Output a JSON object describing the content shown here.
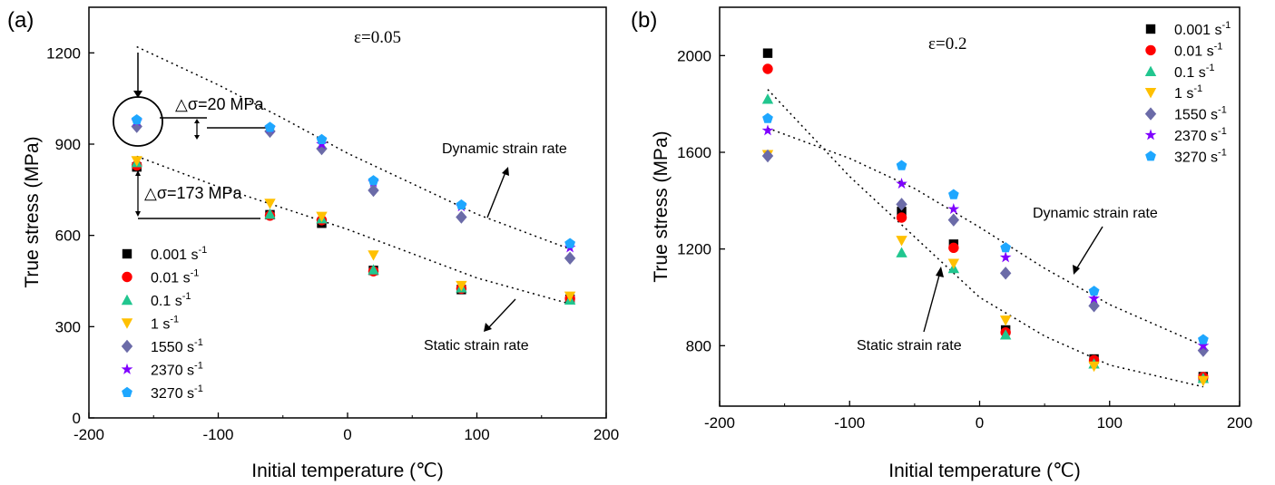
{
  "chart_data": [
    {
      "panel_label": "(a)",
      "type": "scatter",
      "strain_label": "ε=0.05",
      "xlabel": "Initial temperature (℃)",
      "ylabel": "True stress (MPa)",
      "xlim": [
        -200,
        200
      ],
      "ylim": [
        0,
        1350
      ],
      "xticks": [
        "-200",
        "-100",
        "0",
        "100",
        "200"
      ],
      "yticks": [
        "0",
        "300",
        "600",
        "900",
        "1200"
      ],
      "legend_position": "bottom-left",
      "series": [
        {
          "name": "0.001 s",
          "exp": "-1",
          "marker": "square",
          "color": "#000000",
          "x": [
            -163,
            -60,
            -20,
            20,
            88,
            172
          ],
          "y": [
            825,
            668,
            640,
            485,
            422,
            390
          ]
        },
        {
          "name": "0.01 s",
          "exp": "-1",
          "marker": "circle",
          "color": "#ff0000",
          "x": [
            -163,
            -60,
            -20,
            20,
            88,
            172
          ],
          "y": [
            830,
            665,
            650,
            482,
            425,
            392
          ]
        },
        {
          "name": "0.1 s",
          "exp": "-1",
          "marker": "triangle-up",
          "color": "#21c68f",
          "x": [
            -163,
            -60,
            -20,
            20,
            88,
            172
          ],
          "y": [
            840,
            670,
            655,
            487,
            428,
            388
          ]
        },
        {
          "name": "1 s",
          "exp": "-1",
          "marker": "triangle-down",
          "color": "#ffc000",
          "x": [
            -163,
            -60,
            -20,
            20,
            88,
            172
          ],
          "y": [
            845,
            705,
            662,
            535,
            435,
            400
          ]
        },
        {
          "name": "1550 s",
          "exp": "-1",
          "marker": "diamond",
          "color": "#6b6ba8",
          "x": [
            -163,
            -60,
            -20,
            20,
            88,
            172
          ],
          "y": [
            958,
            942,
            885,
            748,
            660,
            525
          ]
        },
        {
          "name": "2370 s",
          "exp": "-1",
          "marker": "star",
          "color": "#7f00ff",
          "x": [
            -163,
            -60,
            -20,
            20,
            88,
            172
          ],
          "y": [
            975,
            952,
            900,
            775,
            695,
            560
          ]
        },
        {
          "name": "3270 s",
          "exp": "-1",
          "marker": "pentagon",
          "color": "#1ea7ff",
          "x": [
            -163,
            -60,
            -20,
            20,
            88,
            172
          ],
          "y": [
            980,
            955,
            915,
            780,
            700,
            573
          ]
        }
      ],
      "trend_lines": [
        {
          "label": "Dynamic strain rate",
          "x": [
            -163,
            -100,
            -50,
            0,
            50,
            100,
            172
          ],
          "y": [
            1220,
            1095,
            985,
            870,
            770,
            670,
            555
          ]
        },
        {
          "label": "Static strain rate",
          "x": [
            -163,
            -100,
            -50,
            0,
            50,
            100,
            172
          ],
          "y": [
            860,
            760,
            690,
            620,
            540,
            460,
            375
          ]
        }
      ],
      "annotations": [
        "△σ=20 MPa",
        "△σ=173 MPa",
        "Dynamic strain rate",
        "Static strain rate"
      ]
    },
    {
      "panel_label": "(b)",
      "type": "scatter",
      "strain_label": "ε=0.2",
      "xlabel": "Initial temperature (℃)",
      "ylabel": "True stress (MPa)",
      "xlim": [
        -200,
        200
      ],
      "ylim": [
        550,
        2200
      ],
      "xticks": [
        "-200",
        "-100",
        "0",
        "100",
        "200"
      ],
      "yticks": [
        "800",
        "1200",
        "1600",
        "2000"
      ],
      "legend_position": "top-right",
      "series": [
        {
          "name": "0.001 s",
          "exp": "-1",
          "marker": "square",
          "color": "#000000",
          "x": [
            -163,
            -60,
            -20,
            20,
            88,
            172
          ],
          "y": [
            2010,
            1355,
            1220,
            865,
            745,
            672
          ]
        },
        {
          "name": "0.01 s",
          "exp": "-1",
          "marker": "circle",
          "color": "#ff0000",
          "x": [
            -163,
            -60,
            -20,
            20,
            88,
            172
          ],
          "y": [
            1945,
            1330,
            1205,
            855,
            740,
            670
          ]
        },
        {
          "name": "0.1 s",
          "exp": "-1",
          "marker": "triangle-up",
          "color": "#21c68f",
          "x": [
            -163,
            -60,
            -20,
            20,
            88,
            172
          ],
          "y": [
            1820,
            1185,
            1120,
            845,
            725,
            665
          ]
        },
        {
          "name": "1 s",
          "exp": "-1",
          "marker": "triangle-down",
          "color": "#ffc000",
          "x": [
            -163,
            -60,
            -20,
            20,
            88,
            172
          ],
          "y": [
            1590,
            1235,
            1140,
            905,
            715,
            655
          ]
        },
        {
          "name": "1550 s",
          "exp": "-1",
          "marker": "diamond",
          "color": "#6b6ba8",
          "x": [
            -163,
            -60,
            -20,
            20,
            88,
            172
          ],
          "y": [
            1585,
            1385,
            1320,
            1100,
            965,
            780
          ]
        },
        {
          "name": "2370 s",
          "exp": "-1",
          "marker": "star",
          "color": "#7f00ff",
          "x": [
            -163,
            -60,
            -20,
            20,
            88,
            172
          ],
          "y": [
            1690,
            1470,
            1365,
            1165,
            995,
            800
          ]
        },
        {
          "name": "3270 s",
          "exp": "-1",
          "marker": "pentagon",
          "color": "#1ea7ff",
          "x": [
            -163,
            -60,
            -20,
            20,
            88,
            172
          ],
          "y": [
            1740,
            1545,
            1425,
            1205,
            1025,
            825
          ]
        }
      ],
      "trend_lines": [
        {
          "label": "Dynamic strain rate",
          "x": [
            -163,
            -100,
            -50,
            0,
            50,
            100,
            172
          ],
          "y": [
            1700,
            1575,
            1450,
            1290,
            1120,
            970,
            800
          ]
        },
        {
          "label": "Static strain rate",
          "x": [
            -163,
            -100,
            -50,
            0,
            50,
            100,
            172
          ],
          "y": [
            1860,
            1500,
            1250,
            1000,
            840,
            720,
            630
          ]
        }
      ],
      "annotations": [
        "Dynamic strain rate",
        "Static strain rate"
      ]
    }
  ]
}
